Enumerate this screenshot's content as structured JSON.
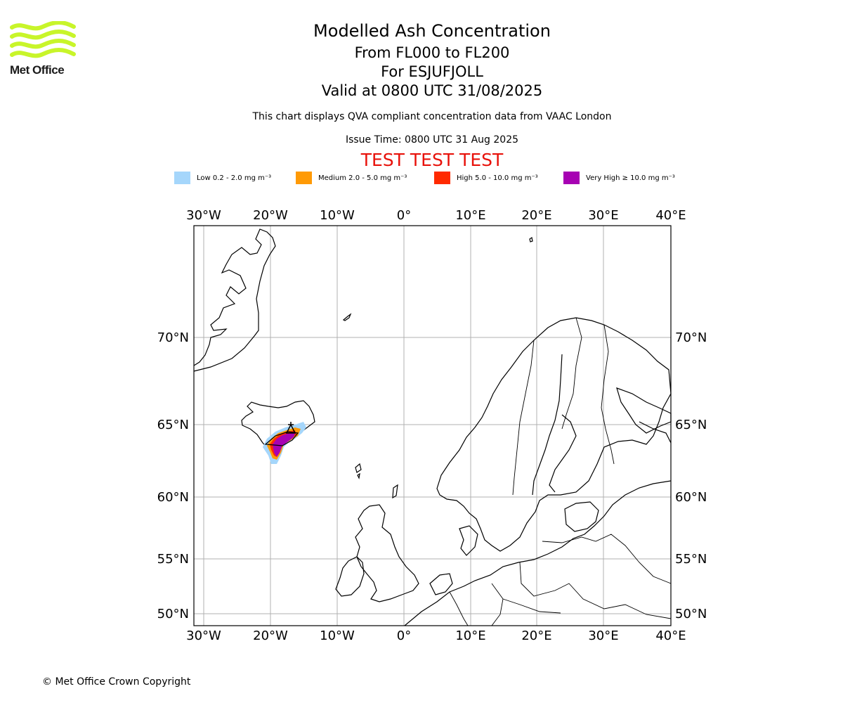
{
  "logo": {
    "text": "Met Office",
    "color": "#c8f52a"
  },
  "header": {
    "title": "Modelled Ash Concentration",
    "levels": "From FL000 to FL200",
    "volcano": "For ESJUFJOLL",
    "valid": "Valid at 0800 UTC 31/08/2025",
    "note": "This chart displays QVA compliant concentration data from VAAC London",
    "issue": "Issue Time: 0800 UTC 31 Aug 2025",
    "test_banner": "TEST TEST TEST",
    "test_color": "#e8120b"
  },
  "legend": [
    {
      "label": "Low 0.2 - 2.0 mg m⁻³",
      "color": "#a5d6fb"
    },
    {
      "label": "Medium 2.0 - 5.0 mg m⁻³",
      "color": "#ff9a05"
    },
    {
      "label": "High 5.0 - 10.0 mg m⁻³",
      "color": "#ff2a00"
    },
    {
      "label": "Very High  ≥  10.0 mg m⁻³",
      "color": "#a702b3"
    }
  ],
  "map": {
    "longitude_labels": [
      "30°W",
      "20°W",
      "10°W",
      "0°",
      "10°E",
      "20°E",
      "30°E",
      "40°E"
    ],
    "latitude_labels": [
      "70°N",
      "65°N",
      "60°N",
      "55°N",
      "50°N"
    ],
    "gridlines": true,
    "volcano_symbol": "volcano-triangle-icon"
  },
  "footer": {
    "copyright": "© Met Office Crown Copyright"
  }
}
